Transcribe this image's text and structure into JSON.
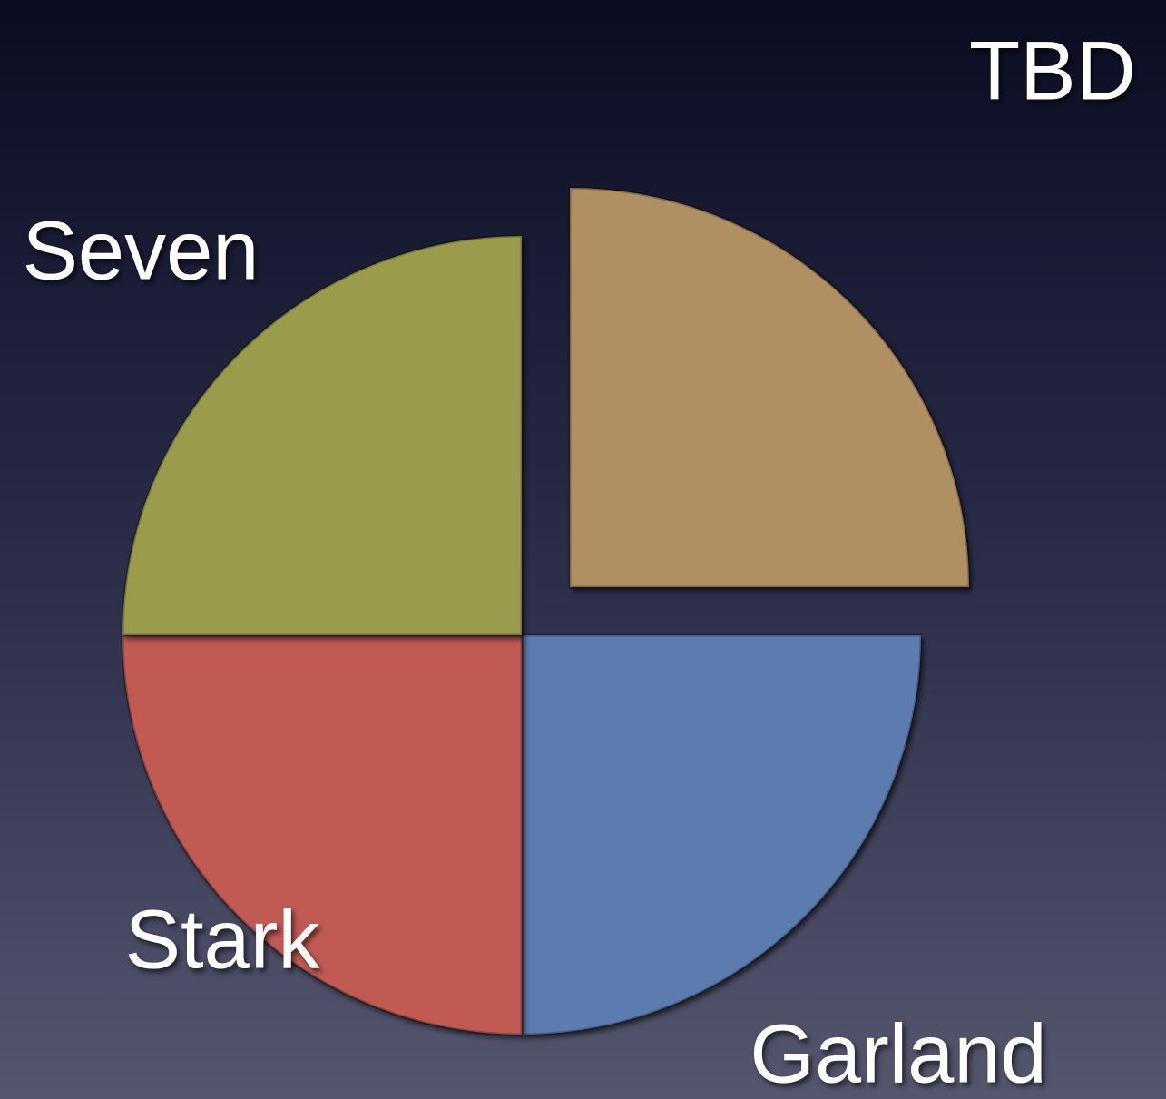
{
  "chart_data": {
    "type": "pie",
    "categories": [
      "TBD",
      "Garland",
      "Stark",
      "Seven"
    ],
    "values": [
      25,
      25,
      25,
      25
    ],
    "colors": [
      "#b08f62",
      "#5b7bb0",
      "#c15a52",
      "#9a9c4c"
    ],
    "exploded": [
      "TBD"
    ]
  }
}
